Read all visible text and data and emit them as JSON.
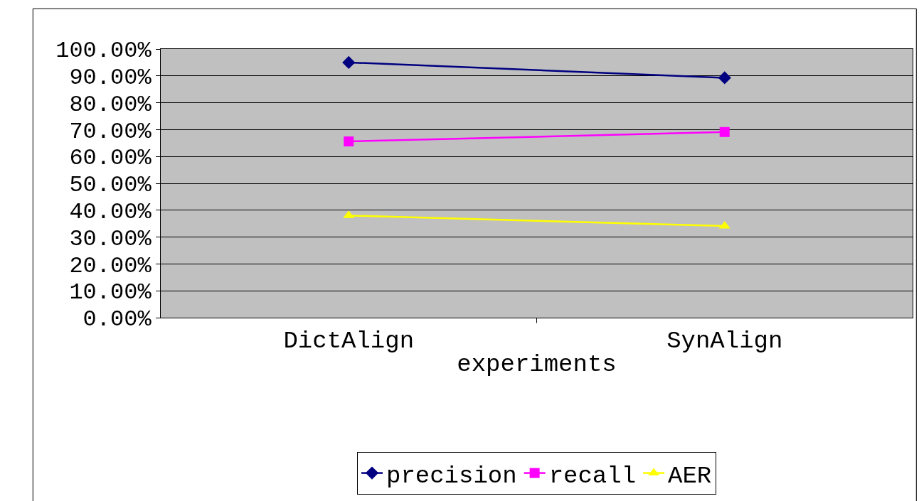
{
  "chart_data": {
    "type": "line",
    "xlabel": "experiments",
    "categories": [
      "DictAlign",
      "SynAlign"
    ],
    "series": [
      {
        "name": "precision",
        "color": "#000080",
        "values": [
          95.0,
          89.3
        ],
        "marker": "diamond"
      },
      {
        "name": "recall",
        "color": "#ff00ff",
        "values": [
          65.6,
          69.1
        ],
        "marker": "square"
      },
      {
        "name": "AER",
        "color": "#ffff00",
        "values": [
          38.0,
          34.1
        ],
        "marker": "triangle"
      }
    ],
    "ylim": [
      0,
      100
    ],
    "yticks": [
      {
        "value": 0,
        "label": "0.00%"
      },
      {
        "value": 10,
        "label": "10.00%"
      },
      {
        "value": 20,
        "label": "20.00%"
      },
      {
        "value": 30,
        "label": "30.00%"
      },
      {
        "value": 40,
        "label": "40.00%"
      },
      {
        "value": 50,
        "label": "50.00%"
      },
      {
        "value": 60,
        "label": "60.00%"
      },
      {
        "value": 70,
        "label": "70.00%"
      },
      {
        "value": 80,
        "label": "80.00%"
      },
      {
        "value": 90,
        "label": "90.00%"
      },
      {
        "value": 100,
        "label": "100.00%"
      }
    ],
    "grid": "y",
    "legend": "bottom",
    "line_style": "solid"
  }
}
